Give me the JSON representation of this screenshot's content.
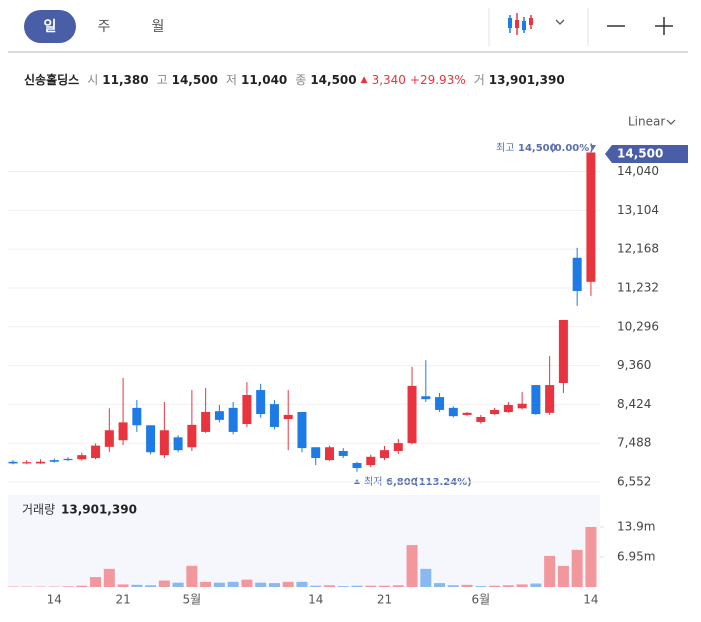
{
  "toolbar": {
    "tabs": [
      "일",
      "주",
      "월"
    ],
    "selected": 0,
    "scale_mode": "Linear"
  },
  "quote": {
    "name": "신송홀딩스",
    "fields": [
      {
        "label": "시",
        "value": "11,380"
      },
      {
        "label": "고",
        "value": "14,500"
      },
      {
        "label": "저",
        "value": "11,040"
      },
      {
        "label": "종",
        "value": "14,500"
      }
    ],
    "change": "3,340",
    "change_pct": "+29.93%",
    "volume_label": "거",
    "volume": "13,901,390"
  },
  "chart_data": [
    {
      "type": "candlestick",
      "categories": [
        null,
        null,
        null,
        "14",
        null,
        null,
        null,
        null,
        "21",
        null,
        null,
        null,
        null,
        "5월",
        null,
        null,
        null,
        null,
        null,
        null,
        null,
        null,
        "14",
        null,
        null,
        null,
        null,
        "21",
        null,
        null,
        null,
        null,
        null,
        null,
        "6월",
        null,
        null,
        null,
        null,
        null,
        null,
        null,
        "14"
      ],
      "open": [
        7040,
        7000,
        7000,
        7080,
        7110,
        7100,
        7130,
        7400,
        7560,
        8340,
        7920,
        7200,
        7630,
        7390,
        7760,
        8260,
        8340,
        7950,
        8770,
        8430,
        8070,
        8240,
        7390,
        7080,
        7300,
        7010,
        6960,
        7130,
        7300,
        7490,
        8620,
        8600,
        8340,
        8170,
        8000,
        8190,
        8240,
        8330,
        8890,
        8220,
        8940,
        11960,
        11380
      ],
      "high": [
        7080,
        7080,
        7100,
        7120,
        7150,
        7260,
        7480,
        8330,
        9060,
        8530,
        7920,
        8480,
        7680,
        8770,
        8820,
        8410,
        8480,
        8960,
        8920,
        8530,
        8770,
        8240,
        7390,
        7430,
        7370,
        7040,
        7210,
        7420,
        7590,
        9330,
        9490,
        8700,
        8380,
        8240,
        8170,
        8340,
        8480,
        8720,
        8890,
        9590,
        10460,
        12200,
        14500
      ],
      "low": [
        6980,
        6980,
        6990,
        7020,
        7060,
        7070,
        7100,
        7280,
        7440,
        7760,
        7220,
        7130,
        7270,
        7300,
        7740,
        7990,
        7700,
        7880,
        8100,
        7820,
        7320,
        7270,
        6960,
        7060,
        7130,
        6800,
        6910,
        7080,
        7230,
        7460,
        8480,
        8240,
        8110,
        8140,
        7960,
        8170,
        8220,
        8300,
        8170,
        8170,
        8700,
        10800,
        11040
      ],
      "close": [
        7000,
        7030,
        7040,
        7040,
        7080,
        7200,
        7430,
        7800,
        7990,
        7920,
        7270,
        7800,
        7320,
        7930,
        8240,
        8050,
        7760,
        8650,
        8190,
        7880,
        8170,
        7370,
        7130,
        7390,
        7180,
        6890,
        7160,
        7320,
        7490,
        8870,
        8550,
        8290,
        8140,
        8220,
        8120,
        8290,
        8410,
        8440,
        8190,
        8890,
        10460,
        11160,
        14500
      ],
      "up_color": "#e8343e",
      "down_color": "#1e7be6",
      "ylim": [
        6359,
        14801
      ],
      "yticks": [
        {
          "value": 6552,
          "label": "6,552"
        },
        {
          "value": 7488,
          "label": "7,488"
        },
        {
          "value": 8424,
          "label": "8,424"
        },
        {
          "value": 9360,
          "label": "9,360"
        },
        {
          "value": 10296,
          "label": "10,296"
        },
        {
          "value": 11232,
          "label": "11,232"
        },
        {
          "value": 12168,
          "label": "12,168"
        },
        {
          "value": 13104,
          "label": "13,104"
        },
        {
          "value": 14040,
          "label": "14,040"
        }
      ],
      "grid": true,
      "last_label": "14,500",
      "max_annotation": {
        "label": "최고",
        "value": "14,500",
        "pct": "(0.00%)"
      },
      "min_annotation": {
        "label": "최저",
        "value": "6,800",
        "pct": "(113.24%)"
      }
    },
    {
      "type": "bar",
      "title": "거래량",
      "title_value": "13,901,390",
      "values": [
        100000,
        100000,
        100000,
        100000,
        150000,
        300000,
        2300000,
        4200000,
        600000,
        500000,
        400000,
        1500000,
        1000000,
        4900000,
        1200000,
        1000000,
        1200000,
        1700000,
        1000000,
        900000,
        1200000,
        1200000,
        300000,
        400000,
        200000,
        300000,
        300000,
        300000,
        400000,
        9700000,
        4200000,
        900000,
        400000,
        500000,
        200000,
        300000,
        400000,
        600000,
        800000,
        7200000,
        4900000,
        8600000,
        13901390
      ],
      "up_color": "#f2989d",
      "down_color": "#88b9ef",
      "ylim": [
        0,
        21300000
      ],
      "yticks": [
        {
          "value": 6950000,
          "label": "6.95m"
        },
        {
          "value": 13900000,
          "label": "13.9m"
        }
      ]
    }
  ]
}
